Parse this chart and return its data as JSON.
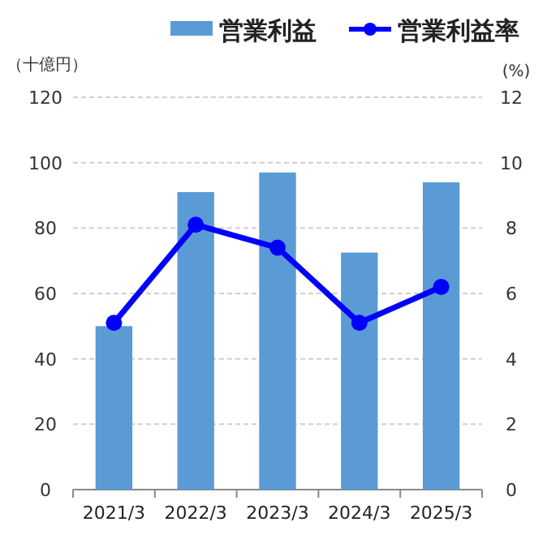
{
  "chart_data": {
    "type": "bar",
    "ylabel": "（十億円）",
    "y2label": "(%)",
    "categories": [
      "2021/3",
      "2022/3",
      "2023/3",
      "2024/3",
      "2025/3"
    ],
    "series": [
      {
        "name": "営業利益",
        "color": "#5b9bd5",
        "values": [
          50,
          91,
          97,
          72.5,
          94
        ]
      },
      {
        "name": "営業利益率",
        "type": "line",
        "axis": "y2",
        "color": "#0000ff",
        "marker": "circle",
        "values": [
          5.1,
          8.1,
          7.4,
          5.1,
          6.2
        ]
      }
    ],
    "ylim": [
      0,
      120
    ],
    "yticks": [
      0,
      20,
      40,
      60,
      80,
      100,
      120
    ],
    "y2lim": [
      0,
      12
    ],
    "y2ticks": [
      0,
      2,
      4,
      6,
      8,
      10,
      12
    ],
    "grid": "y",
    "legend": "top"
  }
}
